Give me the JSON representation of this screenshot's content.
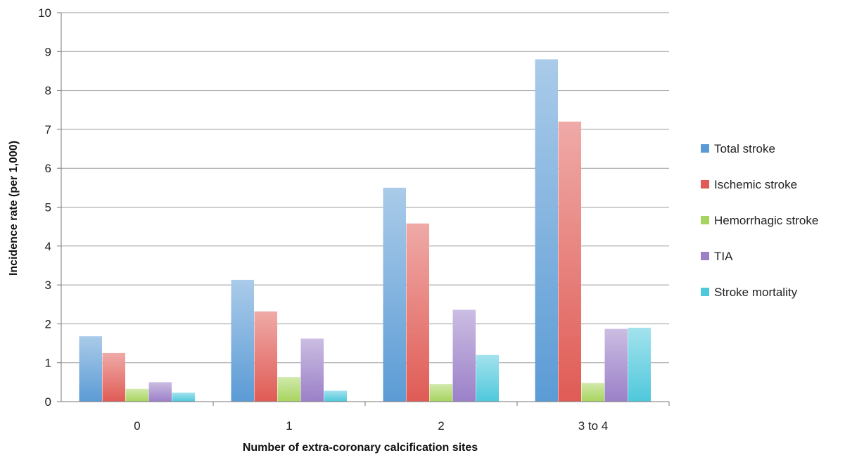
{
  "chart_data": {
    "type": "bar",
    "xlabel": "Number of extra-coronary calcification sites",
    "ylabel": "Incidence rate (per 1,000)",
    "categories": [
      "0",
      "1",
      "2",
      "3 to 4"
    ],
    "ylim": [
      0,
      10
    ],
    "yticks": [
      0,
      1,
      2,
      3,
      4,
      5,
      6,
      7,
      8,
      9,
      10
    ],
    "grid": true,
    "legend_position": "right",
    "series": [
      {
        "name": "Total stroke",
        "color": "#5b9bd5",
        "values": [
          1.68,
          3.13,
          5.5,
          8.8
        ]
      },
      {
        "name": "Ischemic stroke",
        "color": "#e05b55",
        "values": [
          1.25,
          2.32,
          4.58,
          7.2
        ]
      },
      {
        "name": "Hemorrhagic stroke",
        "color": "#a7d45e",
        "values": [
          0.33,
          0.63,
          0.45,
          0.48
        ]
      },
      {
        "name": "TIA",
        "color": "#9b80c8",
        "values": [
          0.5,
          1.62,
          2.36,
          1.87
        ]
      },
      {
        "name": "Stroke mortality",
        "color": "#4fc8dc",
        "values": [
          0.23,
          0.28,
          1.2,
          1.9
        ]
      }
    ]
  }
}
